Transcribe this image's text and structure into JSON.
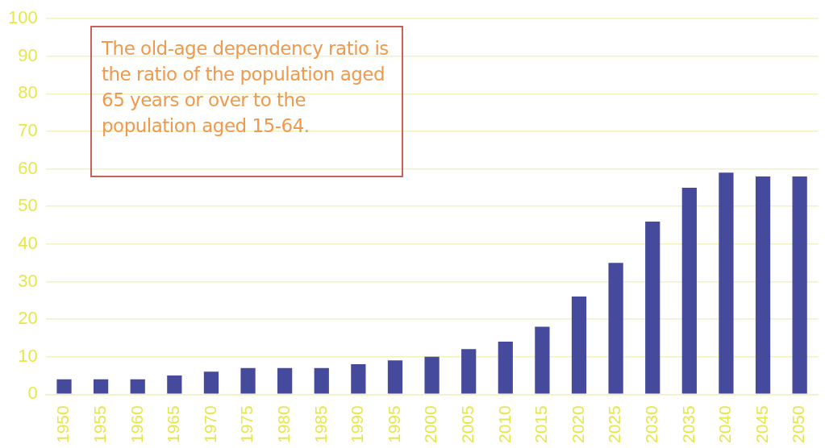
{
  "chart_data": {
    "type": "bar",
    "categories": [
      "1950",
      "1955",
      "1960",
      "1965",
      "1970",
      "1975",
      "1980",
      "1985",
      "1990",
      "1995",
      "2000",
      "2005",
      "2010",
      "2015",
      "2020",
      "2025",
      "2030",
      "2035",
      "2040",
      "2045",
      "2050"
    ],
    "values": [
      4,
      4,
      4,
      5,
      6,
      7,
      7,
      7,
      8,
      9,
      10,
      12,
      14,
      18,
      26,
      35,
      46,
      55,
      59,
      58,
      58
    ],
    "color": "#464a9c",
    "ylim": [
      0,
      100
    ],
    "yticks": [
      0,
      10,
      20,
      30,
      40,
      50,
      60,
      70,
      80,
      90,
      100
    ],
    "grid": "y",
    "annotations": [
      "The old-age dependency ratio is the ratio of the population aged 65 years or over to the population aged 15-64."
    ]
  }
}
